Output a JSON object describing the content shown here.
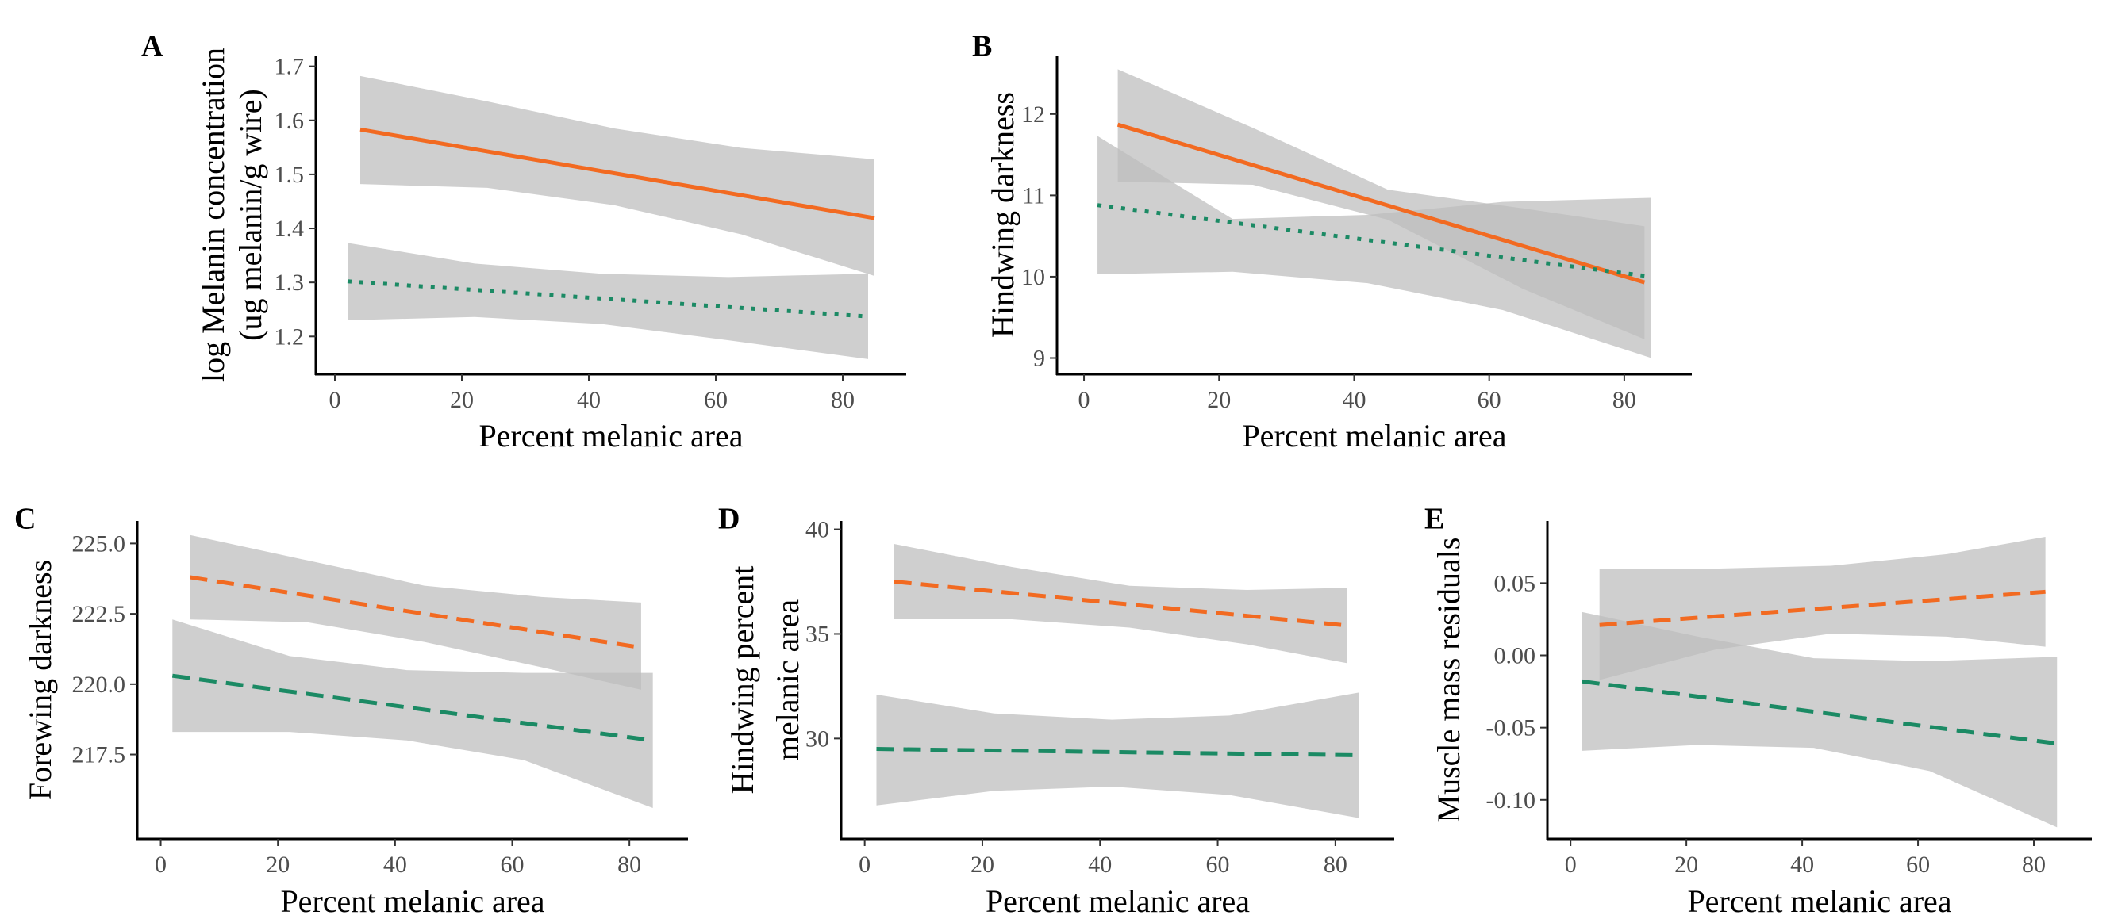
{
  "colors": {
    "orange": "#f26a21",
    "green": "#1b8a64",
    "band": "#bdbdbd",
    "axis": "#000000"
  },
  "chart_data": [
    {
      "type": "line",
      "panel": "A",
      "xlabel": "Percent melanic area",
      "ylabel_lines": [
        "log Melanin concentration",
        "(ug melanin/g wire)"
      ],
      "xlim": [
        -3,
        90
      ],
      "ylim": [
        1.13,
        1.72
      ],
      "xticks": [
        0,
        20,
        40,
        60,
        80
      ],
      "xtick_labels": [
        "0",
        "20",
        "40",
        "60",
        "80"
      ],
      "yticks": [
        1.2,
        1.3,
        1.4,
        1.5,
        1.6,
        1.7
      ],
      "ytick_labels": [
        "1.2",
        "1.3",
        "1.4",
        "1.5",
        "1.6",
        "1.7"
      ],
      "series": [
        {
          "color": "orange",
          "dash": "solid",
          "x": [
            4,
            85
          ],
          "y": [
            1.583,
            1.419
          ],
          "band_x": [
            4,
            24,
            44,
            64,
            85
          ],
          "band_lower": [
            1.482,
            1.475,
            1.443,
            1.389,
            1.312
          ],
          "band_upper": [
            1.682,
            1.635,
            1.585,
            1.549,
            1.528
          ]
        },
        {
          "color": "green",
          "dash": "dotted",
          "x": [
            2,
            84
          ],
          "y": [
            1.302,
            1.237
          ],
          "band_x": [
            2,
            22,
            42,
            62,
            84
          ],
          "band_lower": [
            1.23,
            1.236,
            1.223,
            1.193,
            1.158
          ],
          "band_upper": [
            1.373,
            1.335,
            1.316,
            1.31,
            1.316
          ]
        }
      ]
    },
    {
      "type": "line",
      "panel": "B",
      "xlabel": "Percent melanic area",
      "ylabel_lines": [
        "Hindwing darkness"
      ],
      "xlim": [
        -4,
        90
      ],
      "ylim": [
        8.8,
        12.72
      ],
      "xticks": [
        0,
        20,
        40,
        60,
        80
      ],
      "xtick_labels": [
        "0",
        "20",
        "40",
        "60",
        "80"
      ],
      "yticks": [
        9,
        10,
        11,
        12
      ],
      "ytick_labels": [
        "9",
        "10",
        "11",
        "12"
      ],
      "series": [
        {
          "color": "orange",
          "dash": "solid",
          "x": [
            5,
            83
          ],
          "y": [
            11.87,
            9.93
          ],
          "band_x": [
            5,
            25,
            45,
            65,
            83
          ],
          "band_lower": [
            11.17,
            11.13,
            10.7,
            9.85,
            9.23
          ],
          "band_upper": [
            12.55,
            11.83,
            11.07,
            10.84,
            10.62
          ]
        },
        {
          "color": "green",
          "dash": "dotted",
          "x": [
            2,
            84
          ],
          "y": [
            10.88,
            10.0
          ],
          "band_x": [
            2,
            22,
            42,
            62,
            84
          ],
          "band_lower": [
            10.03,
            10.06,
            9.92,
            9.59,
            9.0
          ],
          "band_upper": [
            11.73,
            10.71,
            10.76,
            10.92,
            10.97
          ]
        }
      ]
    },
    {
      "type": "line",
      "panel": "C",
      "xlabel": "Percent melanic area",
      "ylabel_lines": [
        "Forewing darkness"
      ],
      "xlim": [
        -4,
        90
      ],
      "ylim": [
        214.5,
        225.8
      ],
      "xticks": [
        0,
        20,
        40,
        60,
        80
      ],
      "xtick_labels": [
        "0",
        "20",
        "40",
        "60",
        "80"
      ],
      "yticks": [
        217.5,
        220.0,
        222.5,
        225.0
      ],
      "ytick_labels": [
        "217.5",
        "220.0",
        "222.5",
        "225.0"
      ],
      "series": [
        {
          "color": "orange",
          "dash": "dashed",
          "x": [
            5,
            82
          ],
          "y": [
            223.8,
            221.3
          ],
          "band_x": [
            5,
            25,
            45,
            65,
            82
          ],
          "band_lower": [
            222.3,
            222.2,
            221.5,
            220.6,
            219.8
          ],
          "band_upper": [
            225.3,
            224.4,
            223.5,
            223.1,
            222.9
          ]
        },
        {
          "color": "green",
          "dash": "dashed",
          "x": [
            2,
            84
          ],
          "y": [
            220.3,
            218.0
          ],
          "band_x": [
            2,
            22,
            42,
            62,
            84
          ],
          "band_lower": [
            218.3,
            218.3,
            218.0,
            217.3,
            215.6
          ],
          "band_upper": [
            222.3,
            221.0,
            220.5,
            220.4,
            220.4
          ]
        }
      ]
    },
    {
      "type": "line",
      "panel": "D",
      "xlabel": "Percent melanic area",
      "ylabel_lines": [
        "Hindwing percent",
        "melanic area"
      ],
      "xlim": [
        -4,
        90
      ],
      "ylim": [
        25.2,
        40.4
      ],
      "xticks": [
        0,
        20,
        40,
        60,
        80
      ],
      "xtick_labels": [
        "0",
        "20",
        "40",
        "60",
        "80"
      ],
      "yticks": [
        30,
        35,
        40
      ],
      "ytick_labels": [
        "30",
        "35",
        "40"
      ],
      "series": [
        {
          "color": "orange",
          "dash": "dashed",
          "x": [
            5,
            82
          ],
          "y": [
            37.5,
            35.4
          ],
          "band_x": [
            5,
            25,
            45,
            65,
            82
          ],
          "band_lower": [
            35.7,
            35.7,
            35.3,
            34.5,
            33.6
          ],
          "band_upper": [
            39.3,
            38.2,
            37.3,
            37.1,
            37.2
          ]
        },
        {
          "color": "green",
          "dash": "dashed",
          "x": [
            2,
            84
          ],
          "y": [
            29.5,
            29.2
          ],
          "band_x": [
            2,
            22,
            42,
            62,
            84
          ],
          "band_lower": [
            26.8,
            27.5,
            27.7,
            27.3,
            26.2
          ],
          "band_upper": [
            32.1,
            31.2,
            30.9,
            31.1,
            32.2
          ]
        }
      ]
    },
    {
      "type": "line",
      "panel": "E",
      "xlabel": "Percent melanic area",
      "ylabel_lines": [
        "Muscle mass residuals"
      ],
      "xlim": [
        -4,
        90
      ],
      "ylim": [
        -0.127,
        0.093
      ],
      "xticks": [
        0,
        20,
        40,
        60,
        80
      ],
      "xtick_labels": [
        "0",
        "20",
        "40",
        "60",
        "80"
      ],
      "yticks": [
        -0.1,
        -0.05,
        0.0,
        0.05
      ],
      "ytick_labels": [
        "-0.10",
        "-0.05",
        "0.00",
        "0.05"
      ],
      "series": [
        {
          "color": "orange",
          "dash": "dashed",
          "x": [
            5,
            82
          ],
          "y": [
            0.021,
            0.044
          ],
          "band_x": [
            5,
            25,
            45,
            65,
            82
          ],
          "band_lower": [
            -0.017,
            0.004,
            0.015,
            0.013,
            0.006
          ],
          "band_upper": [
            0.06,
            0.06,
            0.062,
            0.07,
            0.082
          ]
        },
        {
          "color": "green",
          "dash": "dashed",
          "x": [
            2,
            84
          ],
          "y": [
            -0.018,
            -0.061
          ],
          "band_x": [
            2,
            22,
            42,
            62,
            84
          ],
          "band_lower": [
            -0.066,
            -0.062,
            -0.064,
            -0.08,
            -0.119
          ],
          "band_upper": [
            0.03,
            0.013,
            -0.002,
            -0.004,
            -0.001
          ]
        }
      ]
    }
  ]
}
